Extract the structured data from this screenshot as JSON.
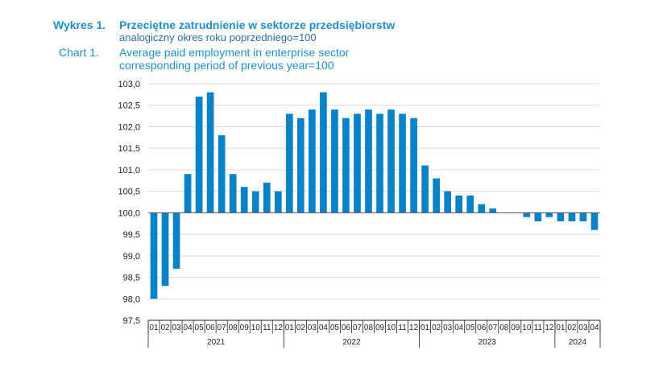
{
  "header": {
    "label_pl": "Wykres 1.",
    "title_pl": "Przeciętne zatrudnienie w sektorze przedsiębiorstw",
    "subtitle_pl": "analogiczny okres roku poprzedniego=100",
    "label_en": "Chart 1.",
    "title_en": "Average paid employment in enterprise sector",
    "subtitle_en": "corresponding period of previous year=100"
  },
  "colors": {
    "bar": "#0a82c8",
    "grid": "#d9d9d9",
    "axis": "#222222",
    "text": "#222222"
  },
  "chart_data": {
    "type": "bar",
    "baseline": 100.0,
    "ylim": [
      97.5,
      103.0
    ],
    "yticks": [
      "97,5",
      "98,0",
      "98,5",
      "99,0",
      "99,5",
      "100,0",
      "100,5",
      "101,0",
      "101,5",
      "102,0",
      "102,5",
      "103,0"
    ],
    "ytick_values": [
      97.5,
      98.0,
      98.5,
      99.0,
      99.5,
      100.0,
      100.5,
      101.0,
      101.5,
      102.0,
      102.5,
      103.0
    ],
    "grid": true,
    "categories": [
      "01",
      "02",
      "03",
      "04",
      "05",
      "06",
      "07",
      "08",
      "09",
      "10",
      "11",
      "12",
      "01",
      "02",
      "03",
      "04",
      "05",
      "06",
      "07",
      "08",
      "09",
      "10",
      "11",
      "12",
      "01",
      "02",
      "03",
      "04",
      "05",
      "06",
      "07",
      "08",
      "09",
      "10",
      "11",
      "12",
      "01",
      "02",
      "03",
      "04"
    ],
    "groups": [
      {
        "label": "2021",
        "count": 12
      },
      {
        "label": "2022",
        "count": 12
      },
      {
        "label": "2023",
        "count": 12
      },
      {
        "label": "2024",
        "count": 4
      }
    ],
    "values": [
      98.0,
      98.3,
      98.7,
      100.9,
      102.7,
      102.8,
      101.8,
      100.9,
      100.6,
      100.5,
      100.7,
      100.5,
      102.3,
      102.2,
      102.4,
      102.8,
      102.4,
      102.2,
      102.3,
      102.4,
      102.3,
      102.4,
      102.3,
      102.2,
      101.1,
      100.8,
      100.5,
      100.4,
      100.4,
      100.2,
      100.1,
      100.0,
      100.0,
      99.9,
      99.8,
      99.9,
      99.8,
      99.8,
      99.8,
      99.6
    ]
  }
}
